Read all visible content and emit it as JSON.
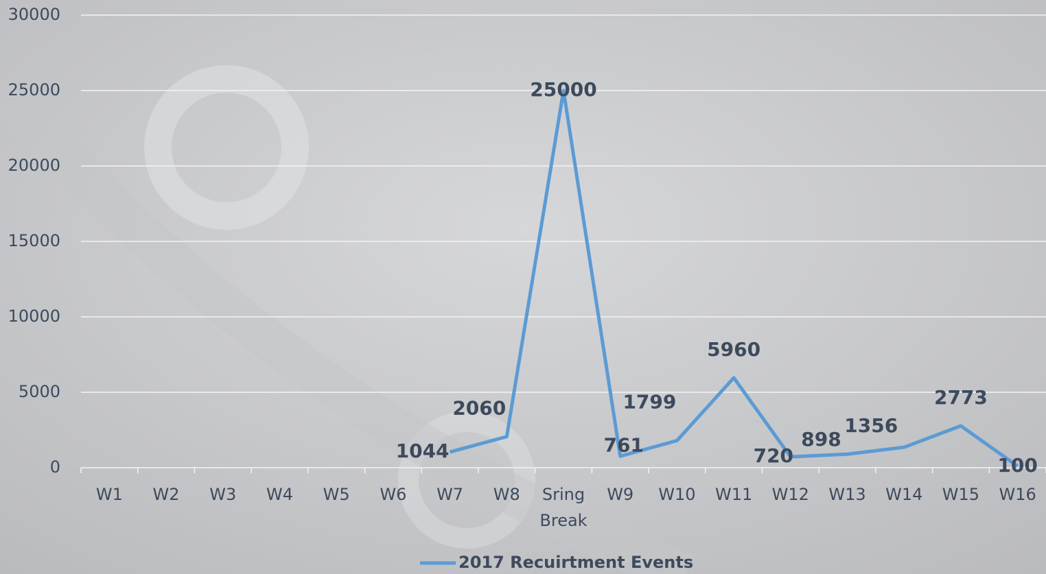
{
  "chart_data": {
    "type": "line",
    "categories": [
      "W1",
      "W2",
      "W3",
      "W4",
      "W5",
      "W6",
      "W7",
      "W8",
      "Sring Break",
      "W9",
      "W10",
      "W11",
      "W12",
      "W13",
      "W14",
      "W15",
      "W16"
    ],
    "series": [
      {
        "name": "2017 Recuirtment Events",
        "color": "#5b9bd5",
        "values": [
          null,
          null,
          null,
          null,
          null,
          null,
          1044,
          2060,
          25000,
          761,
          1799,
          5960,
          720,
          898,
          1356,
          2773,
          100
        ]
      }
    ],
    "ylim": [
      0,
      30000
    ],
    "yticks": [
      0,
      5000,
      10000,
      15000,
      20000,
      25000,
      30000
    ],
    "grid": true,
    "legend": "bottom"
  }
}
